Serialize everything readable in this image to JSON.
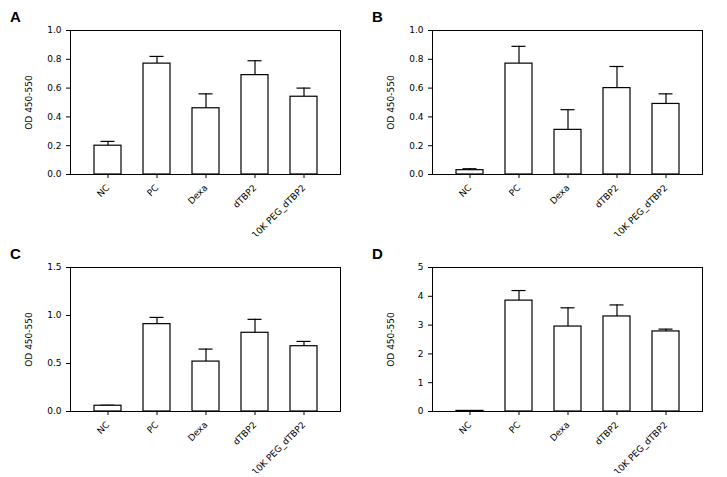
{
  "chart_data": [
    {
      "type": "bar",
      "title": "A",
      "y_label": "OD 450-550",
      "categories": [
        "NC",
        "PC",
        "Dexa",
        "dTBP2",
        "10K PEG_dTBP2"
      ],
      "values": [
        0.2,
        0.77,
        0.46,
        0.69,
        0.54
      ],
      "errors": [
        0.03,
        0.05,
        0.1,
        0.1,
        0.06
      ],
      "color": "#ffffff",
      "grid": false,
      "ylim": [
        0,
        1.0
      ],
      "yticks": [
        {
          "value": 0,
          "label": "0.0"
        },
        0.2,
        0.4,
        0.6,
        0.8,
        {
          "value": 1.0,
          "label": "1.0"
        }
      ]
    },
    {
      "type": "bar",
      "title": "B",
      "y_label": "OD 450-550",
      "categories": [
        "NC",
        "PC",
        "Dexa",
        "dTBP2",
        "10K PEG_dTBP2"
      ],
      "values": [
        0.03,
        0.77,
        0.31,
        0.6,
        0.49
      ],
      "errors": [
        0.01,
        0.12,
        0.14,
        0.15,
        0.07
      ],
      "color": "#ffffff",
      "grid": false,
      "ylim": [
        0,
        1.0
      ],
      "yticks": [
        {
          "value": 0,
          "label": "0.0"
        },
        0.2,
        0.4,
        0.6,
        0.8,
        {
          "value": 1.0,
          "label": "1.0"
        }
      ]
    },
    {
      "type": "bar",
      "title": "C",
      "y_label": "OD 450-550",
      "categories": [
        "NC",
        "PC",
        "Dexa",
        "dTBP2",
        "10K PEG_dTBP2"
      ],
      "values": [
        0.06,
        0.91,
        0.52,
        0.82,
        0.68
      ],
      "errors": [
        0.005,
        0.07,
        0.13,
        0.14,
        0.05
      ],
      "color": "#ffffff",
      "grid": false,
      "ylim": [
        0,
        1.5
      ],
      "yticks": [
        {
          "value": 0,
          "label": "0.0"
        },
        0.5,
        {
          "value": 1.0,
          "label": "1.0"
        },
        1.5
      ]
    },
    {
      "type": "bar",
      "title": "D",
      "y_label": "OD 450-550",
      "categories": [
        "NC",
        "PC",
        "Dexa",
        "dTBP2",
        "10K PEG_dTBP2"
      ],
      "values": [
        0.02,
        3.85,
        2.95,
        3.3,
        2.78
      ],
      "errors": [
        0.005,
        0.35,
        0.65,
        0.4,
        0.08
      ],
      "color": "#ffffff",
      "grid": false,
      "ylim": [
        0,
        5
      ],
      "yticks": [
        0,
        1,
        2,
        3,
        4,
        5
      ]
    }
  ]
}
